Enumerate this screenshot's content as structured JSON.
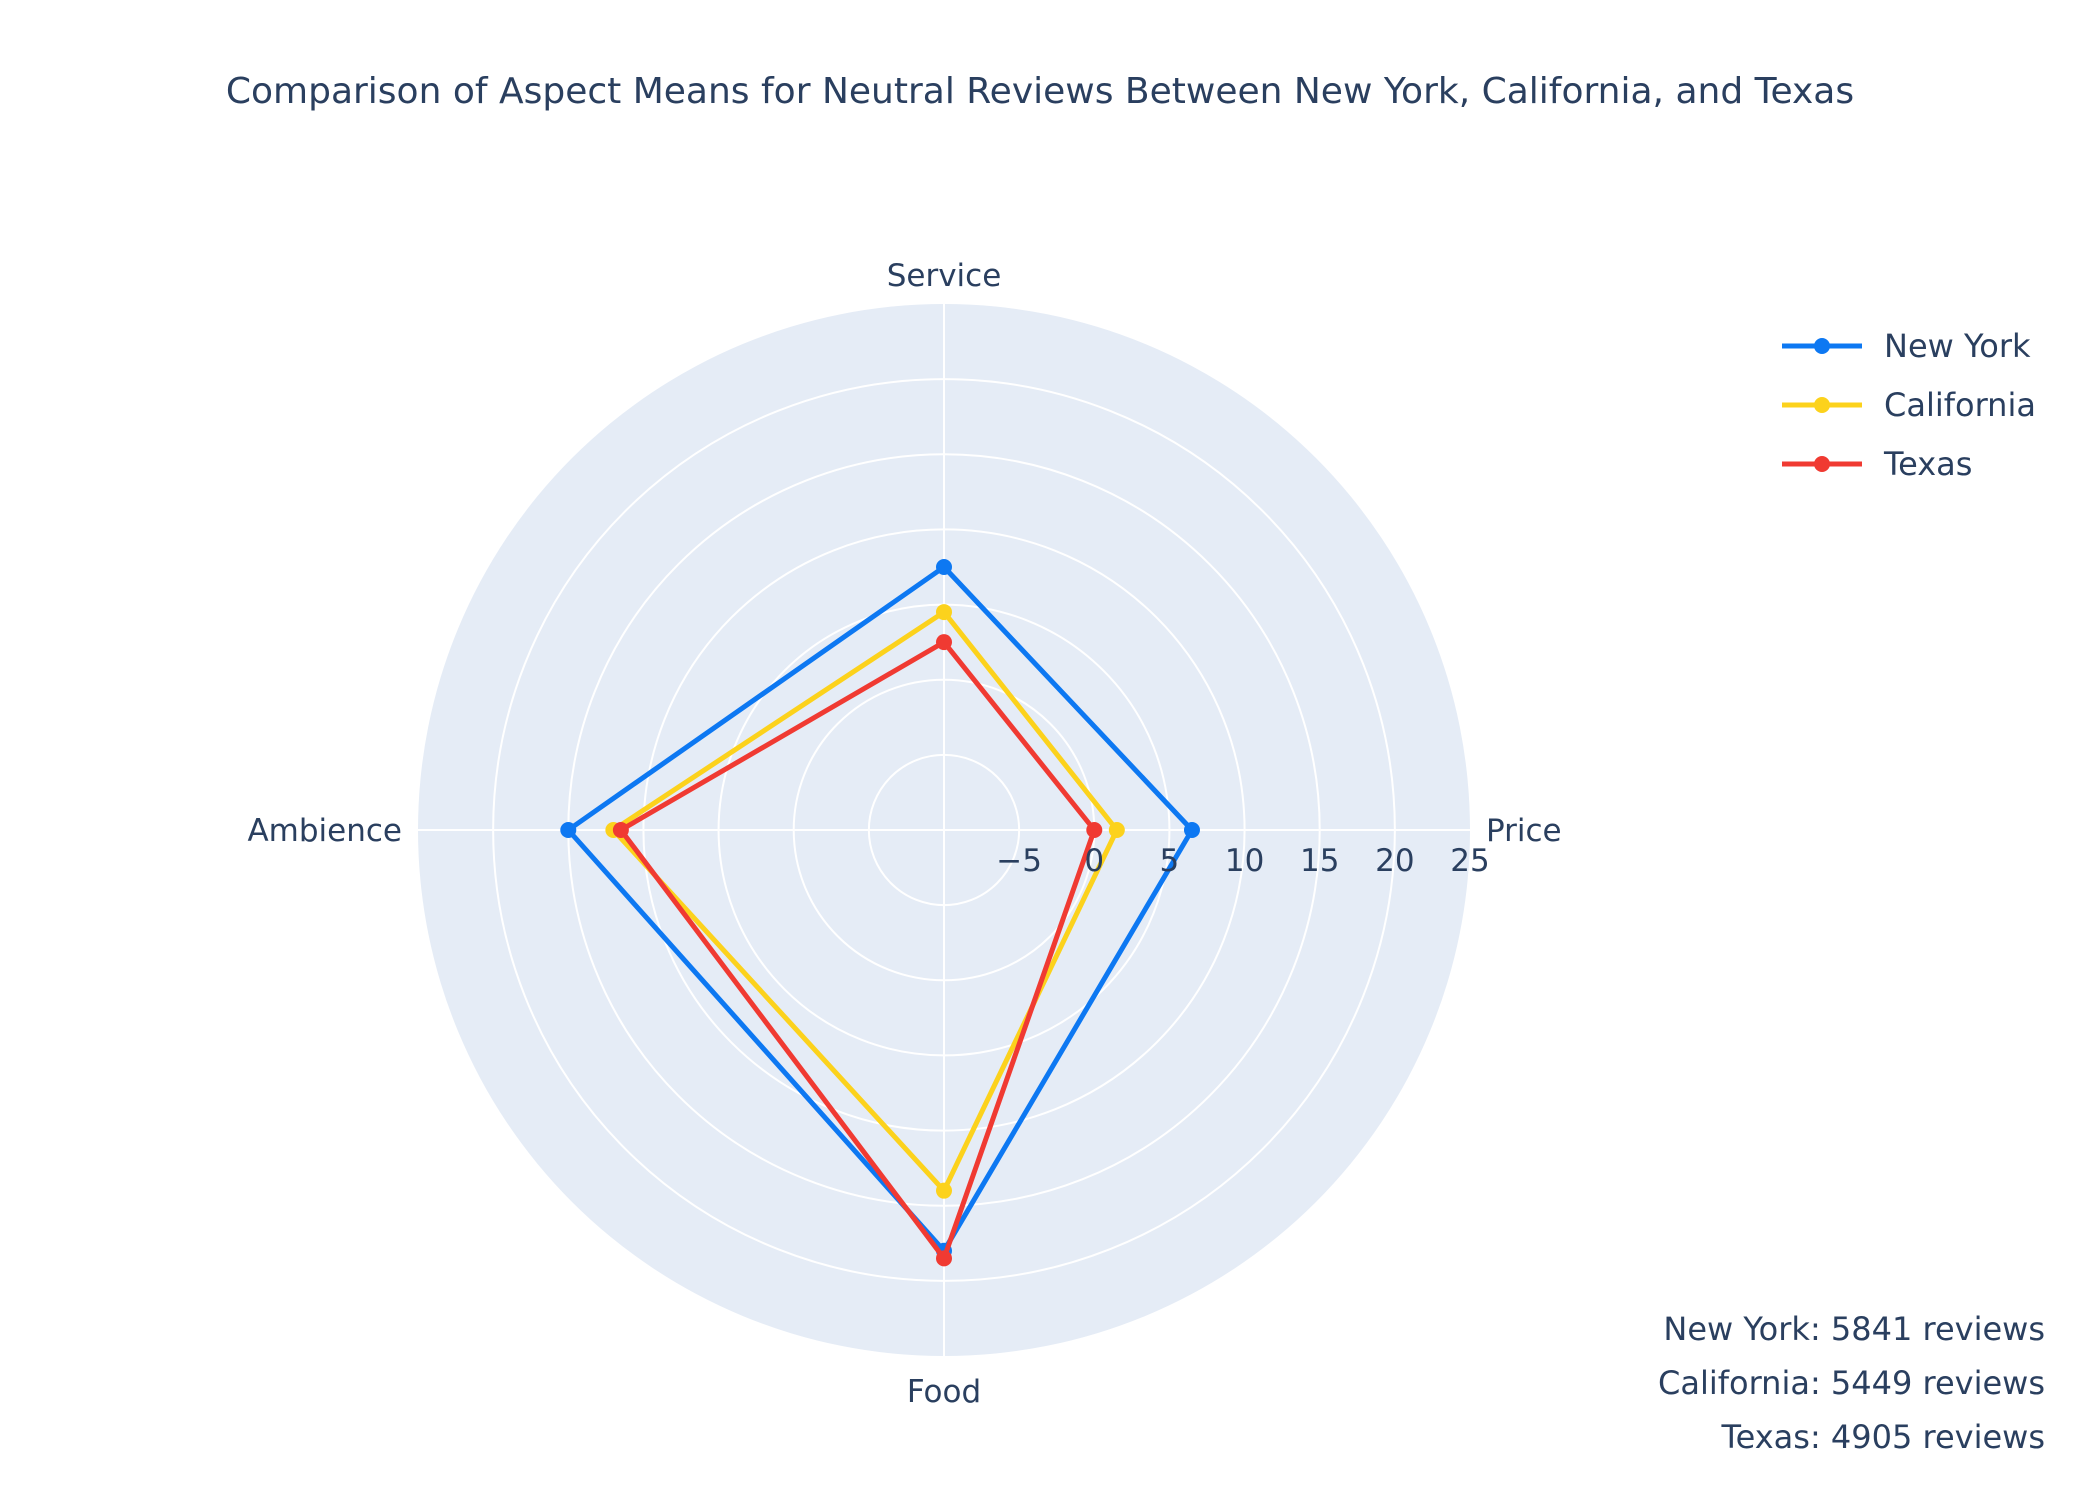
{
  "chart_data": {
    "type": "radar",
    "title": "Comparison of Aspect Means for Neutral Reviews Between New York, California, and Texas",
    "categories": [
      "Service",
      "Price",
      "Food",
      "Ambience"
    ],
    "radial_range": [
      -10,
      25
    ],
    "radial_ticks": [
      -5,
      0,
      5,
      10,
      15,
      20,
      25
    ],
    "radial_tick_labels": [
      "−5",
      "0",
      "5",
      "10",
      "15",
      "20",
      "25"
    ],
    "background_color": "#e5ecf6",
    "grid_color": "#ffffff",
    "grid": true,
    "legend_placement": "top-right",
    "series": [
      {
        "name": "New York",
        "color": "#0d78f2",
        "values": [
          7.5,
          6.5,
          18,
          15
        ]
      },
      {
        "name": "California",
        "color": "#fcd21c",
        "values": [
          4.5,
          1.5,
          14,
          12
        ]
      },
      {
        "name": "Texas",
        "color": "#f03a32",
        "values": [
          2.5,
          0,
          18.5,
          11.5
        ]
      }
    ],
    "annotations": [
      "New York: 5841 reviews",
      "California: 5449 reviews",
      "Texas: 4905 reviews"
    ]
  }
}
